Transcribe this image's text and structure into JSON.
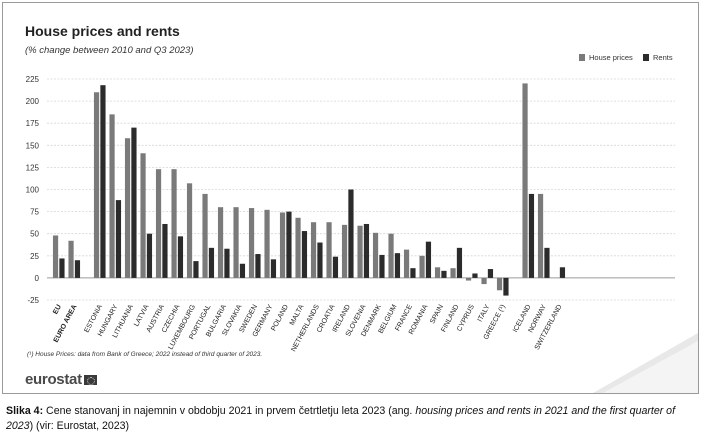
{
  "title": "House prices and rents",
  "subtitle": "(% change between 2010 and Q3 2023)",
  "footnote": "(¹) House Prices: data from Bank of Greece; 2022 instead of third quarter of 2023.",
  "logo_text": "eurostat",
  "caption": {
    "label": "Slika 4:",
    "text_main": " Cene stanovanj in najemnin v obdobju 2021 in prvem četrtletju leta 2023 (ang. ",
    "text_italic": "housing prices and rents in 2021 and the first quarter of 2023",
    "text_end": ") (vir: Eurostat, 2023)"
  },
  "colors": {
    "house_prices": "#7a7a7a",
    "rents": "#2b2b2b",
    "grid": "#d6d6d6"
  },
  "chart_data": {
    "type": "bar",
    "ylim": [
      -25,
      225
    ],
    "yticks": [
      -25,
      0,
      25,
      50,
      75,
      100,
      125,
      150,
      175,
      200,
      225
    ],
    "legend": "top-right",
    "grid": true,
    "groups": [
      [
        "EU",
        "EURO AREA"
      ],
      [
        "ESTONIA",
        "HUNGARY",
        "LITHUANIA",
        "LATVIA",
        "AUSTRIA",
        "CZECHIA",
        "LUXEMBOURG",
        "PORTUGAL",
        "BULGARIA",
        "SLOVAKIA",
        "SWEDEN",
        "GERMANY",
        "POLAND",
        "MALTA",
        "NETHERLANDS",
        "CROATIA",
        "IRELAND",
        "SLOVENIA",
        "DENMARK",
        "BELGIUM",
        "FRANCE",
        "ROMANIA",
        "SPAIN",
        "FINLAND",
        "CYPRUS",
        "ITALY",
        "GREECE (¹)"
      ],
      [
        "ICELAND",
        "NORWAY",
        "SWITZERLAND"
      ]
    ],
    "bold_categories": [
      "EU",
      "EURO AREA"
    ],
    "series": [
      {
        "name": "House prices",
        "values": [
          48,
          42,
          210,
          185,
          158,
          141,
          123,
          123,
          107,
          95,
          80,
          80,
          79,
          77,
          74,
          68,
          63,
          63,
          60,
          59,
          51,
          50,
          32,
          25,
          12,
          11,
          -3,
          -7,
          -14,
          220,
          95,
          null
        ]
      },
      {
        "name": "Rents",
        "values": [
          22,
          20,
          218,
          88,
          170,
          50,
          61,
          47,
          19,
          34,
          33,
          16,
          27,
          21,
          75,
          53,
          40,
          24,
          100,
          61,
          26,
          28,
          11,
          41,
          8,
          34,
          5,
          10,
          -20,
          95,
          34,
          12
        ]
      }
    ]
  }
}
